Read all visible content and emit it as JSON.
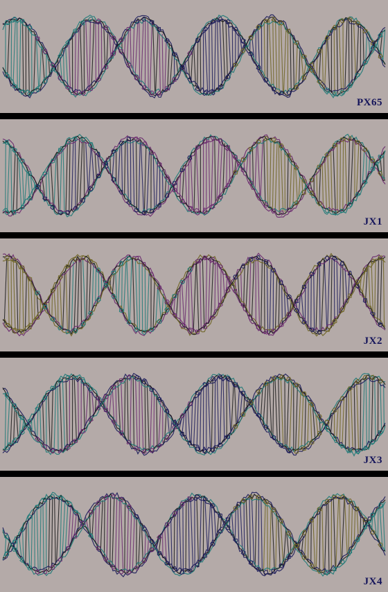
{
  "figure": {
    "panels": [
      {
        "label": "PX65"
      },
      {
        "label": "JX1"
      },
      {
        "label": "JX2"
      },
      {
        "label": "JX3"
      },
      {
        "label": "JX4"
      }
    ]
  },
  "colors": {
    "background": "#b4aaa8",
    "separator": "#000000",
    "label": "#14145a",
    "strand_teal": "#1f7a78",
    "strand_purple": "#6a2a6e",
    "strand_navy": "#1c1c5a",
    "strand_olive": "#6e6424",
    "strand_black": "#1a1a1a"
  }
}
